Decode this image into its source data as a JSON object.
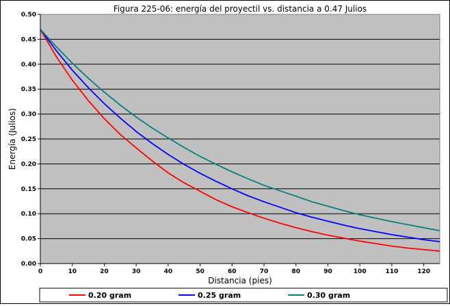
{
  "chart_data": {
    "type": "line",
    "title": "Figura 225-06: energía del proyectil vs. distancia a 0.47 Julios",
    "xlabel": "Distancia (pies)",
    "ylabel": "Energía (Julios)",
    "xlim": [
      0,
      125
    ],
    "ylim": [
      0,
      0.5
    ],
    "xticks": [
      "0",
      "10",
      "20",
      "30",
      "40",
      "50",
      "60",
      "70",
      "80",
      "90",
      "100",
      "110",
      "120"
    ],
    "yticks": [
      "0.00",
      "0.05",
      "0.10",
      "0.15",
      "0.20",
      "0.25",
      "0.30",
      "0.35",
      "0.40",
      "0.45",
      "0.50"
    ],
    "grid": "horizontal",
    "legend_position": "bottom",
    "background_color": "#c0c0c0",
    "series": [
      {
        "name": "0.20 gram",
        "color": "#ff0000",
        "x": [
          0,
          5,
          10,
          15,
          20,
          25,
          30,
          35,
          40,
          45,
          50,
          55,
          60,
          65,
          70,
          75,
          80,
          85,
          90,
          95,
          100,
          105,
          110,
          115,
          120,
          125
        ],
        "y": [
          0.47,
          0.415,
          0.368,
          0.327,
          0.291,
          0.259,
          0.232,
          0.206,
          0.182,
          0.162,
          0.145,
          0.128,
          0.114,
          0.102,
          0.091,
          0.081,
          0.072,
          0.064,
          0.057,
          0.051,
          0.045,
          0.04,
          0.035,
          0.031,
          0.028,
          0.025
        ]
      },
      {
        "name": "0.25 gram",
        "color": "#0000ff",
        "x": [
          0,
          5,
          10,
          15,
          20,
          25,
          30,
          35,
          40,
          45,
          50,
          55,
          60,
          65,
          70,
          75,
          80,
          85,
          90,
          95,
          100,
          105,
          110,
          115,
          120,
          125
        ],
        "y": [
          0.47,
          0.427,
          0.388,
          0.353,
          0.321,
          0.292,
          0.265,
          0.241,
          0.219,
          0.199,
          0.181,
          0.165,
          0.15,
          0.136,
          0.124,
          0.113,
          0.102,
          0.093,
          0.085,
          0.077,
          0.07,
          0.064,
          0.058,
          0.053,
          0.048,
          0.044
        ]
      },
      {
        "name": "0.30 gram",
        "color": "#008080",
        "x": [
          0,
          5,
          10,
          15,
          20,
          25,
          30,
          35,
          40,
          45,
          50,
          55,
          60,
          65,
          70,
          75,
          80,
          85,
          90,
          95,
          100,
          105,
          110,
          115,
          120,
          125
        ],
        "y": [
          0.47,
          0.435,
          0.402,
          0.372,
          0.344,
          0.318,
          0.294,
          0.272,
          0.252,
          0.233,
          0.215,
          0.199,
          0.184,
          0.17,
          0.157,
          0.146,
          0.135,
          0.124,
          0.115,
          0.106,
          0.098,
          0.091,
          0.084,
          0.078,
          0.072,
          0.066
        ]
      }
    ]
  }
}
